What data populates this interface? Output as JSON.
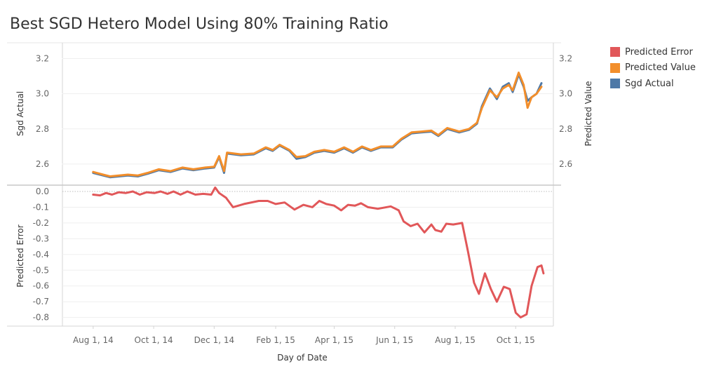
{
  "title": "Best SGD Hetero Model Using 80% Training Ratio",
  "legend": [
    {
      "label": "Predicted Error",
      "color": "#e15759"
    },
    {
      "label": "Predicted Value",
      "color": "#f28e2b"
    },
    {
      "label": "Sgd Actual",
      "color": "#4e79a7"
    }
  ],
  "chart_data": {
    "type": "line",
    "x_axis": {
      "label": "Day of Date",
      "ticks": [
        "Aug 1, 14",
        "Oct 1, 14",
        "Dec 1, 14",
        "Feb 1, 15",
        "Apr 1, 15",
        "Jun 1, 15",
        "Aug 1, 15",
        "Oct 1, 15"
      ],
      "tick_dates": [
        "2014-08-01",
        "2014-10-01",
        "2014-12-01",
        "2015-02-01",
        "2015-04-01",
        "2015-06-01",
        "2015-08-01",
        "2015-10-01"
      ],
      "range": [
        "2014-07-01",
        "2015-11-08"
      ]
    },
    "top_panel": {
      "left_axis_label": "Sgd Actual",
      "right_axis_label": "Predicted Value",
      "ticks": [
        "3.2",
        "3.0",
        "2.8",
        "2.6"
      ],
      "tick_values": [
        3.2,
        3.0,
        2.8,
        2.6
      ],
      "ylim": [
        2.48,
        3.29
      ],
      "series": [
        {
          "name": "Sgd Actual",
          "color": "#4e79a7",
          "points": [
            [
              "2014-08-01",
              2.55
            ],
            [
              "2014-08-11",
              2.535
            ],
            [
              "2014-08-18",
              2.525
            ],
            [
              "2014-08-27",
              2.53
            ],
            [
              "2014-09-05",
              2.535
            ],
            [
              "2014-09-15",
              2.53
            ],
            [
              "2014-09-25",
              2.545
            ],
            [
              "2014-10-06",
              2.565
            ],
            [
              "2014-10-18",
              2.555
            ],
            [
              "2014-10-30",
              2.575
            ],
            [
              "2014-11-10",
              2.565
            ],
            [
              "2014-11-22",
              2.575
            ],
            [
              "2014-12-01",
              2.58
            ],
            [
              "2014-12-06",
              2.64
            ],
            [
              "2014-12-11",
              2.55
            ],
            [
              "2014-12-14",
              2.66
            ],
            [
              "2014-12-28",
              2.65
            ],
            [
              "2015-01-10",
              2.655
            ],
            [
              "2015-01-22",
              2.69
            ],
            [
              "2015-01-29",
              2.675
            ],
            [
              "2015-02-05",
              2.705
            ],
            [
              "2015-02-15",
              2.675
            ],
            [
              "2015-02-22",
              2.63
            ],
            [
              "2015-03-03",
              2.64
            ],
            [
              "2015-03-12",
              2.665
            ],
            [
              "2015-03-22",
              2.675
            ],
            [
              "2015-04-01",
              2.665
            ],
            [
              "2015-04-11",
              2.69
            ],
            [
              "2015-04-20",
              2.665
            ],
            [
              "2015-04-29",
              2.695
            ],
            [
              "2015-05-08",
              2.675
            ],
            [
              "2015-05-18",
              2.695
            ],
            [
              "2015-05-30",
              2.695
            ],
            [
              "2015-06-08",
              2.74
            ],
            [
              "2015-06-18",
              2.775
            ],
            [
              "2015-06-28",
              2.78
            ],
            [
              "2015-07-08",
              2.785
            ],
            [
              "2015-07-15",
              2.76
            ],
            [
              "2015-07-24",
              2.8
            ],
            [
              "2015-08-05",
              2.78
            ],
            [
              "2015-08-15",
              2.795
            ],
            [
              "2015-08-23",
              2.83
            ],
            [
              "2015-08-28",
              2.93
            ],
            [
              "2015-09-05",
              3.03
            ],
            [
              "2015-09-12",
              2.97
            ],
            [
              "2015-09-18",
              3.04
            ],
            [
              "2015-09-24",
              3.06
            ],
            [
              "2015-09-28",
              3.01
            ],
            [
              "2015-10-04",
              3.11
            ],
            [
              "2015-10-09",
              3.04
            ],
            [
              "2015-10-13",
              2.96
            ],
            [
              "2015-10-17",
              2.98
            ],
            [
              "2015-10-22",
              3.0
            ],
            [
              "2015-10-27",
              3.06
            ]
          ]
        },
        {
          "name": "Predicted Value",
          "color": "#f28e2b",
          "points": [
            [
              "2014-08-01",
              2.555
            ],
            [
              "2014-08-11",
              2.54
            ],
            [
              "2014-08-18",
              2.53
            ],
            [
              "2014-08-27",
              2.535
            ],
            [
              "2014-09-05",
              2.54
            ],
            [
              "2014-09-15",
              2.535
            ],
            [
              "2014-09-25",
              2.55
            ],
            [
              "2014-10-06",
              2.57
            ],
            [
              "2014-10-18",
              2.56
            ],
            [
              "2014-10-30",
              2.58
            ],
            [
              "2014-11-10",
              2.57
            ],
            [
              "2014-11-22",
              2.58
            ],
            [
              "2014-12-01",
              2.585
            ],
            [
              "2014-12-06",
              2.645
            ],
            [
              "2014-12-11",
              2.56
            ],
            [
              "2014-12-14",
              2.665
            ],
            [
              "2014-12-28",
              2.655
            ],
            [
              "2015-01-10",
              2.66
            ],
            [
              "2015-01-22",
              2.695
            ],
            [
              "2015-01-29",
              2.68
            ],
            [
              "2015-02-05",
              2.71
            ],
            [
              "2015-02-15",
              2.68
            ],
            [
              "2015-02-22",
              2.64
            ],
            [
              "2015-03-03",
              2.645
            ],
            [
              "2015-03-12",
              2.67
            ],
            [
              "2015-03-22",
              2.68
            ],
            [
              "2015-04-01",
              2.67
            ],
            [
              "2015-04-11",
              2.695
            ],
            [
              "2015-04-20",
              2.67
            ],
            [
              "2015-04-29",
              2.7
            ],
            [
              "2015-05-08",
              2.68
            ],
            [
              "2015-05-18",
              2.7
            ],
            [
              "2015-05-30",
              2.7
            ],
            [
              "2015-06-08",
              2.745
            ],
            [
              "2015-06-18",
              2.78
            ],
            [
              "2015-06-28",
              2.785
            ],
            [
              "2015-07-08",
              2.79
            ],
            [
              "2015-07-15",
              2.765
            ],
            [
              "2015-07-24",
              2.805
            ],
            [
              "2015-08-05",
              2.785
            ],
            [
              "2015-08-15",
              2.8
            ],
            [
              "2015-08-23",
              2.835
            ],
            [
              "2015-08-28",
              2.92
            ],
            [
              "2015-09-05",
              3.02
            ],
            [
              "2015-09-12",
              2.98
            ],
            [
              "2015-09-18",
              3.03
            ],
            [
              "2015-09-24",
              3.05
            ],
            [
              "2015-09-28",
              3.02
            ],
            [
              "2015-10-04",
              3.12
            ],
            [
              "2015-10-09",
              3.05
            ],
            [
              "2015-10-13",
              2.92
            ],
            [
              "2015-10-17",
              2.98
            ],
            [
              "2015-10-22",
              3.0
            ],
            [
              "2015-10-27",
              3.04
            ]
          ]
        }
      ]
    },
    "bottom_panel": {
      "left_axis_label": "Predicted Error",
      "ticks": [
        "0.0",
        "-0.1",
        "-0.2",
        "-0.3",
        "-0.4",
        "-0.5",
        "-0.6",
        "-0.7",
        "-0.8"
      ],
      "tick_values": [
        0.0,
        -0.1,
        -0.2,
        -0.3,
        -0.4,
        -0.5,
        -0.6,
        -0.7,
        -0.8
      ],
      "ylim": [
        -0.855,
        0.04
      ],
      "reference_line": 0.0,
      "series": [
        {
          "name": "Predicted Error",
          "color": "#e15759",
          "points": [
            [
              "2014-08-01",
              -0.02
            ],
            [
              "2014-08-08",
              -0.025
            ],
            [
              "2014-08-14",
              -0.01
            ],
            [
              "2014-08-20",
              -0.02
            ],
            [
              "2014-08-27",
              -0.005
            ],
            [
              "2014-09-03",
              -0.01
            ],
            [
              "2014-09-10",
              0.0
            ],
            [
              "2014-09-17",
              -0.02
            ],
            [
              "2014-09-24",
              -0.005
            ],
            [
              "2014-10-02",
              -0.01
            ],
            [
              "2014-10-08",
              0.0
            ],
            [
              "2014-10-15",
              -0.015
            ],
            [
              "2014-10-21",
              0.0
            ],
            [
              "2014-10-28",
              -0.02
            ],
            [
              "2014-11-04",
              0.0
            ],
            [
              "2014-11-12",
              -0.02
            ],
            [
              "2014-11-20",
              -0.015
            ],
            [
              "2014-11-28",
              -0.02
            ],
            [
              "2014-12-02",
              0.025
            ],
            [
              "2014-12-06",
              -0.01
            ],
            [
              "2014-12-13",
              -0.04
            ],
            [
              "2014-12-20",
              -0.1
            ],
            [
              "2014-12-31",
              -0.08
            ],
            [
              "2015-01-15",
              -0.06
            ],
            [
              "2015-01-24",
              -0.06
            ],
            [
              "2015-02-01",
              -0.08
            ],
            [
              "2015-02-10",
              -0.07
            ],
            [
              "2015-02-20",
              -0.115
            ],
            [
              "2015-03-01",
              -0.085
            ],
            [
              "2015-03-10",
              -0.1
            ],
            [
              "2015-03-17",
              -0.06
            ],
            [
              "2015-03-24",
              -0.08
            ],
            [
              "2015-04-01",
              -0.09
            ],
            [
              "2015-04-08",
              -0.12
            ],
            [
              "2015-04-15",
              -0.085
            ],
            [
              "2015-04-22",
              -0.09
            ],
            [
              "2015-04-28",
              -0.075
            ],
            [
              "2015-05-05",
              -0.1
            ],
            [
              "2015-05-15",
              -0.11
            ],
            [
              "2015-05-28",
              -0.095
            ],
            [
              "2015-06-05",
              -0.12
            ],
            [
              "2015-06-10",
              -0.19
            ],
            [
              "2015-06-17",
              -0.22
            ],
            [
              "2015-06-24",
              -0.205
            ],
            [
              "2015-07-01",
              -0.26
            ],
            [
              "2015-07-08",
              -0.21
            ],
            [
              "2015-07-12",
              -0.245
            ],
            [
              "2015-07-18",
              -0.255
            ],
            [
              "2015-07-23",
              -0.205
            ],
            [
              "2015-07-30",
              -0.21
            ],
            [
              "2015-08-08",
              -0.2
            ],
            [
              "2015-08-14",
              -0.385
            ],
            [
              "2015-08-20",
              -0.58
            ],
            [
              "2015-08-25",
              -0.65
            ],
            [
              "2015-08-31",
              -0.52
            ],
            [
              "2015-09-06",
              -0.62
            ],
            [
              "2015-09-12",
              -0.7
            ],
            [
              "2015-09-19",
              -0.605
            ],
            [
              "2015-09-25",
              -0.62
            ],
            [
              "2015-10-01",
              -0.77
            ],
            [
              "2015-10-06",
              -0.8
            ],
            [
              "2015-10-12",
              -0.78
            ],
            [
              "2015-10-17",
              -0.6
            ],
            [
              "2015-10-23",
              -0.48
            ],
            [
              "2015-10-27",
              -0.47
            ],
            [
              "2015-10-29",
              -0.52
            ]
          ]
        }
      ]
    }
  }
}
